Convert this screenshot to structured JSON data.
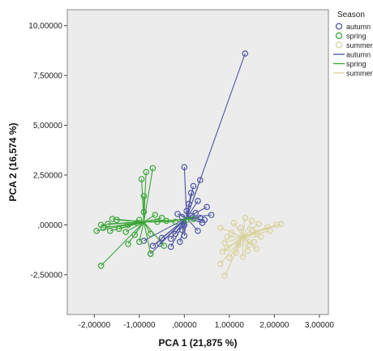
{
  "chart_data": {
    "type": "scatter",
    "xlabel": "PCA 1 (21,875 %)",
    "ylabel": "PCA 2 (16,574 %)",
    "xlim": [
      -2.6,
      3.2
    ],
    "ylim": [
      -4.5,
      10.8
    ],
    "x_ticks": [
      -2,
      -1,
      0,
      1,
      2,
      3
    ],
    "x_tick_labels": [
      "-2,00000",
      "-1,00000",
      ",00000",
      "1,00000",
      "2,00000",
      "3,00000"
    ],
    "y_ticks": [
      -2.5,
      0,
      2.5,
      5,
      7.5,
      10
    ],
    "y_tick_labels": [
      "-2,50000",
      ",00000",
      "2,50000",
      "5,00000",
      "7,50000",
      "10,00000"
    ],
    "grid": false,
    "legend": {
      "title": "Season",
      "placement": "right",
      "entries": [
        {
          "label": "autumn",
          "kind": "marker",
          "color": "#4e55a4"
        },
        {
          "label": "spring",
          "kind": "marker",
          "color": "#3aa537"
        },
        {
          "label": "summer",
          "kind": "marker",
          "color": "#d8d29c"
        },
        {
          "label": "autumn",
          "kind": "line",
          "color": "#4e55a4"
        },
        {
          "label": "spring",
          "kind": "line",
          "color": "#3aa537"
        },
        {
          "label": "summer",
          "kind": "line",
          "color": "#d8d29c"
        }
      ]
    },
    "series": [
      {
        "name": "autumn",
        "color": "#4e55a4",
        "centroid": [
          0.05,
          0.35
        ],
        "points": [
          [
            1.35,
            8.6
          ],
          [
            0.0,
            2.9
          ],
          [
            0.35,
            2.25
          ],
          [
            0.2,
            1.95
          ],
          [
            0.15,
            1.6
          ],
          [
            0.3,
            1.2
          ],
          [
            0.5,
            0.9
          ],
          [
            0.1,
            1.05
          ],
          [
            0.25,
            0.6
          ],
          [
            0.35,
            0.35
          ],
          [
            0.45,
            0.25
          ],
          [
            0.15,
            0.45
          ],
          [
            0.05,
            0.7
          ],
          [
            -0.05,
            0.4
          ],
          [
            -0.15,
            0.55
          ],
          [
            0.6,
            0.5
          ],
          [
            0.4,
            0.1
          ],
          [
            0.0,
            0.0
          ],
          [
            -0.05,
            -0.25
          ],
          [
            -0.2,
            -0.45
          ],
          [
            -0.3,
            -0.7
          ],
          [
            -0.5,
            -0.65
          ],
          [
            -0.55,
            -0.95
          ],
          [
            -0.7,
            -1.05
          ],
          [
            -0.75,
            -1.45
          ],
          [
            -0.3,
            -1.1
          ],
          [
            -0.1,
            -0.85
          ],
          [
            0.0,
            -0.55
          ],
          [
            0.3,
            -0.3
          ],
          [
            -0.9,
            -0.8
          ]
        ]
      },
      {
        "name": "spring",
        "color": "#3aa537",
        "centroid": [
          -0.9,
          0.15
        ],
        "points": [
          [
            -0.85,
            2.65
          ],
          [
            -0.7,
            2.85
          ],
          [
            -0.95,
            2.3
          ],
          [
            -0.9,
            1.45
          ],
          [
            -0.9,
            0.65
          ],
          [
            -0.65,
            0.5
          ],
          [
            -1.0,
            0.25
          ],
          [
            -1.05,
            0.1
          ],
          [
            -1.25,
            0.0
          ],
          [
            -1.5,
            0.25
          ],
          [
            -1.6,
            0.3
          ],
          [
            -1.7,
            0.05
          ],
          [
            -1.8,
            -0.15
          ],
          [
            -1.95,
            -0.3
          ],
          [
            -1.65,
            -0.3
          ],
          [
            -1.45,
            -0.2
          ],
          [
            -1.3,
            -0.35
          ],
          [
            -1.1,
            -0.5
          ],
          [
            -0.75,
            -0.45
          ],
          [
            -0.75,
            -1.45
          ],
          [
            -0.45,
            -1.05
          ],
          [
            -1.0,
            -0.85
          ],
          [
            -1.25,
            -0.95
          ],
          [
            -1.85,
            -2.05
          ],
          [
            -0.6,
            0.15
          ],
          [
            -0.4,
            0.2
          ],
          [
            -0.2,
            0.15
          ],
          [
            0.05,
            0.25
          ],
          [
            0.2,
            0.3
          ],
          [
            -0.5,
            0.35
          ],
          [
            -1.85,
            0.0
          ]
        ]
      },
      {
        "name": "summer",
        "color": "#d8d29c",
        "centroid": [
          1.3,
          -0.6
        ],
        "points": [
          [
            1.35,
            0.35
          ],
          [
            1.5,
            0.2
          ],
          [
            1.65,
            0.05
          ],
          [
            1.85,
            -0.1
          ],
          [
            2.05,
            0.0
          ],
          [
            2.15,
            0.05
          ],
          [
            1.9,
            -0.3
          ],
          [
            1.6,
            -0.4
          ],
          [
            1.7,
            -0.6
          ],
          [
            1.55,
            -0.85
          ],
          [
            1.45,
            -1.0
          ],
          [
            1.4,
            -1.3
          ],
          [
            1.3,
            -1.6
          ],
          [
            1.15,
            -1.4
          ],
          [
            1.0,
            -1.65
          ],
          [
            0.95,
            -1.15
          ],
          [
            0.85,
            -1.35
          ],
          [
            0.8,
            -1.95
          ],
          [
            0.9,
            -2.55
          ],
          [
            0.95,
            -0.6
          ],
          [
            0.8,
            -0.15
          ],
          [
            1.1,
            0.1
          ],
          [
            1.25,
            -0.15
          ],
          [
            1.05,
            -0.4
          ],
          [
            1.5,
            -0.25
          ],
          [
            1.6,
            -1.2
          ],
          [
            1.2,
            -1.0
          ],
          [
            0.9,
            -0.9
          ]
        ]
      }
    ]
  }
}
